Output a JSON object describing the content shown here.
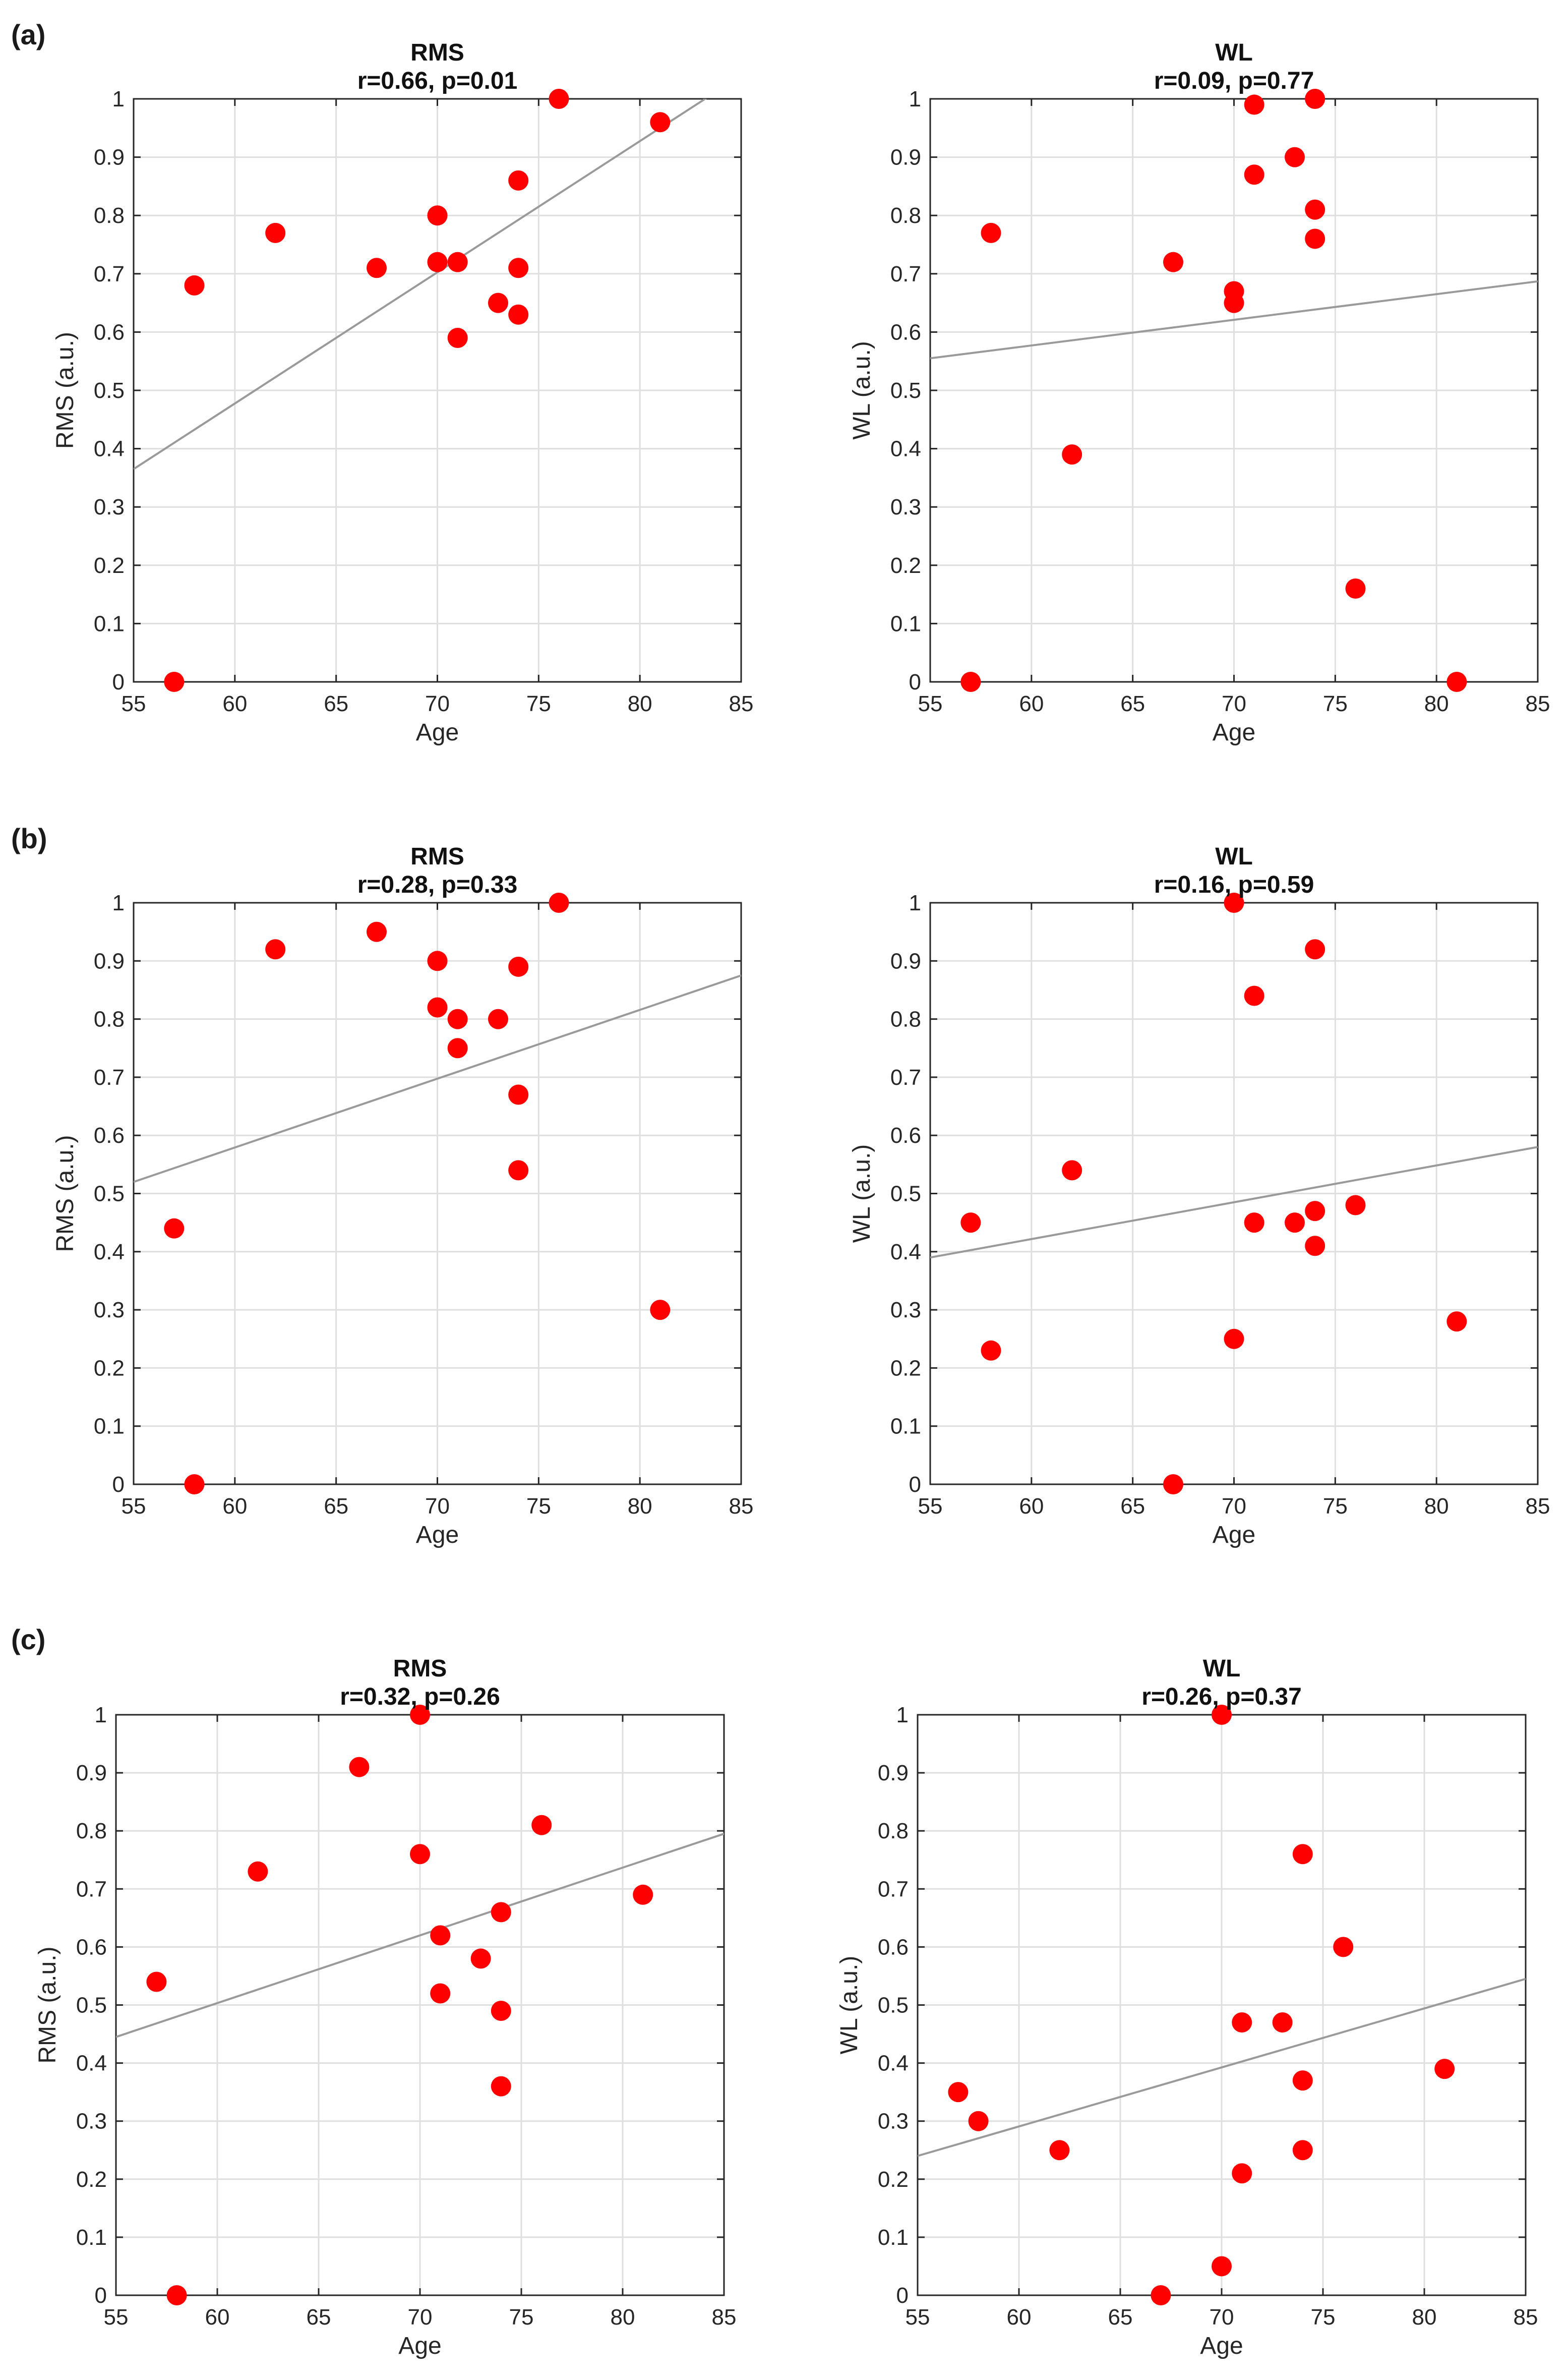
{
  "panel_labels": [
    "(a)",
    "(b)",
    "(c)"
  ],
  "chart_data": [
    {
      "type": "scatter",
      "panel": "(a)",
      "title": "RMS",
      "subtitle": "r=0.66, p=0.01",
      "xlabel": "Age",
      "ylabel": "RMS (a.u.)",
      "xlim": [
        55,
        85
      ],
      "ylim": [
        0,
        1
      ],
      "xticks": [
        "55",
        "60",
        "65",
        "70",
        "75",
        "80",
        "85"
      ],
      "yticks": [
        "0",
        "0.1",
        "0.2",
        "0.3",
        "0.4",
        "0.5",
        "0.6",
        "0.7",
        "0.8",
        "0.9",
        "1"
      ],
      "grid": true,
      "x": [
        57,
        58,
        62,
        67,
        70,
        70,
        71,
        71,
        73,
        74,
        74,
        74,
        76,
        81
      ],
      "y": [
        0.0,
        0.68,
        0.77,
        0.71,
        0.8,
        0.72,
        0.72,
        0.59,
        0.65,
        0.86,
        0.71,
        0.63,
        1.0,
        0.96
      ],
      "fit_line": [
        [
          55,
          0.365
        ],
        [
          85,
          1.04
        ]
      ]
    },
    {
      "type": "scatter",
      "panel": "(a)",
      "title": "WL",
      "subtitle": "r=0.09, p=0.77",
      "xlabel": "Age",
      "ylabel": "WL (a.u.)",
      "xlim": [
        55,
        85
      ],
      "ylim": [
        0,
        1
      ],
      "xticks": [
        "55",
        "60",
        "65",
        "70",
        "75",
        "80",
        "85"
      ],
      "yticks": [
        "0",
        "0.1",
        "0.2",
        "0.3",
        "0.4",
        "0.5",
        "0.6",
        "0.7",
        "0.8",
        "0.9",
        "1"
      ],
      "grid": true,
      "x": [
        57,
        58,
        62,
        67,
        70,
        70,
        71,
        71,
        73,
        74,
        74,
        74,
        76,
        81
      ],
      "y": [
        0.0,
        0.77,
        0.39,
        0.72,
        0.67,
        0.65,
        0.99,
        0.87,
        0.9,
        1.0,
        0.81,
        0.76,
        0.16,
        0.0
      ],
      "fit_line": [
        [
          55,
          0.555
        ],
        [
          85,
          0.687
        ]
      ]
    },
    {
      "type": "scatter",
      "panel": "(b)",
      "title": "RMS",
      "subtitle": "r=0.28, p=0.33",
      "xlabel": "Age",
      "ylabel": "RMS (a.u.)",
      "xlim": [
        55,
        85
      ],
      "ylim": [
        0,
        1
      ],
      "xticks": [
        "55",
        "60",
        "65",
        "70",
        "75",
        "80",
        "85"
      ],
      "yticks": [
        "0",
        "0.1",
        "0.2",
        "0.3",
        "0.4",
        "0.5",
        "0.6",
        "0.7",
        "0.8",
        "0.9",
        "1"
      ],
      "grid": true,
      "x": [
        57,
        58,
        62,
        67,
        70,
        70,
        71,
        71,
        73,
        74,
        74,
        74,
        76,
        81
      ],
      "y": [
        0.44,
        0.0,
        0.92,
        0.95,
        0.9,
        0.82,
        0.8,
        0.75,
        0.8,
        0.89,
        0.67,
        0.54,
        1.0,
        0.3
      ],
      "fit_line": [
        [
          55,
          0.52
        ],
        [
          85,
          0.875
        ]
      ]
    },
    {
      "type": "scatter",
      "panel": "(b)",
      "title": "WL",
      "subtitle": "r=0.16, p=0.59",
      "xlabel": "Age",
      "ylabel": "WL (a.u.)",
      "xlim": [
        55,
        85
      ],
      "ylim": [
        0,
        1
      ],
      "xticks": [
        "55",
        "60",
        "65",
        "70",
        "75",
        "80",
        "85"
      ],
      "yticks": [
        "0",
        "0.1",
        "0.2",
        "0.3",
        "0.4",
        "0.5",
        "0.6",
        "0.7",
        "0.8",
        "0.9",
        "1"
      ],
      "grid": true,
      "x": [
        57,
        58,
        62,
        67,
        70,
        70,
        71,
        71,
        73,
        74,
        74,
        74,
        76,
        81
      ],
      "y": [
        0.45,
        0.23,
        0.54,
        0.0,
        1.0,
        0.25,
        0.84,
        0.45,
        0.45,
        0.92,
        0.47,
        0.41,
        0.48,
        0.28
      ],
      "fit_line": [
        [
          55,
          0.39
        ],
        [
          85,
          0.58
        ]
      ]
    },
    {
      "type": "scatter",
      "panel": "(c)",
      "title": "RMS",
      "subtitle": "r=0.32, p=0.26",
      "xlabel": "Age",
      "ylabel": "RMS (a.u.)",
      "xlim": [
        55,
        85
      ],
      "ylim": [
        0,
        1
      ],
      "xticks": [
        "55",
        "60",
        "65",
        "70",
        "75",
        "80",
        "85"
      ],
      "yticks": [
        "0",
        "0.1",
        "0.2",
        "0.3",
        "0.4",
        "0.5",
        "0.6",
        "0.7",
        "0.8",
        "0.9",
        "1"
      ],
      "grid": true,
      "x": [
        57,
        58,
        62,
        67,
        70,
        70,
        71,
        71,
        73,
        74,
        74,
        74,
        76,
        81
      ],
      "y": [
        0.54,
        0.0,
        0.73,
        0.91,
        1.0,
        0.76,
        0.62,
        0.52,
        0.58,
        0.66,
        0.49,
        0.36,
        0.81,
        0.69
      ],
      "fit_line": [
        [
          55,
          0.445
        ],
        [
          85,
          0.795
        ]
      ]
    },
    {
      "type": "scatter",
      "panel": "(c)",
      "title": "WL",
      "subtitle": "r=0.26, p=0.37",
      "xlabel": "Age",
      "ylabel": "WL (a.u.)",
      "xlim": [
        55,
        85
      ],
      "ylim": [
        0,
        1
      ],
      "xticks": [
        "55",
        "60",
        "65",
        "70",
        "75",
        "80",
        "85"
      ],
      "yticks": [
        "0",
        "0.1",
        "0.2",
        "0.3",
        "0.4",
        "0.5",
        "0.6",
        "0.7",
        "0.8",
        "0.9",
        "1"
      ],
      "grid": true,
      "x": [
        57,
        58,
        62,
        67,
        70,
        70,
        71,
        71,
        73,
        74,
        74,
        74,
        76,
        81
      ],
      "y": [
        0.35,
        0.3,
        0.25,
        0.0,
        1.0,
        0.05,
        0.47,
        0.21,
        0.47,
        0.76,
        0.37,
        0.25,
        0.6,
        0.39
      ],
      "fit_line": [
        [
          55,
          0.24
        ],
        [
          85,
          0.545
        ]
      ]
    }
  ]
}
